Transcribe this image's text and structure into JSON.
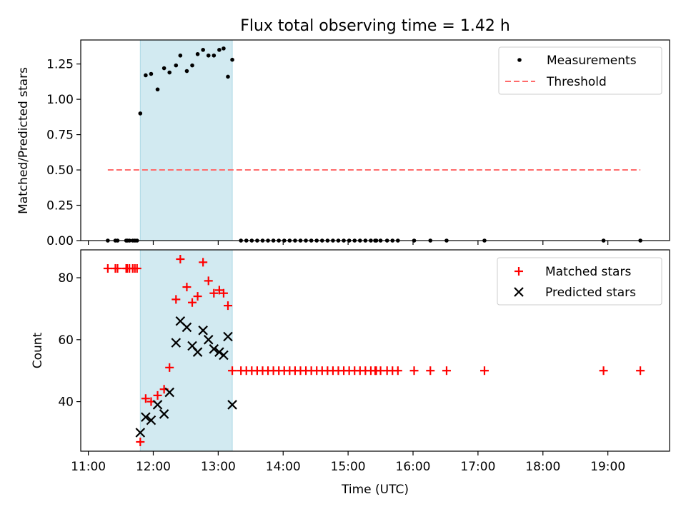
{
  "figure": {
    "title": "Flux total observing time = 1.42 h",
    "xlabel": "Time (UTC)"
  },
  "chart_data": [
    {
      "type": "scatter",
      "ylabel": "Matched/Predicted stars",
      "xlim": [
        "10:53",
        "19:57"
      ],
      "ylim": [
        0,
        1.42
      ],
      "yticks": [
        "0.00",
        "0.25",
        "0.50",
        "0.75",
        "1.00",
        "1.25"
      ],
      "grid": false,
      "legend": {
        "placement": "top-right",
        "entries": [
          "Measurements",
          "Threshold"
        ]
      },
      "shaded_span": {
        "x": [
          "11:48",
          "13:13"
        ],
        "color": "#add8e6"
      },
      "series": [
        {
          "name": "Measurements",
          "marker": "point",
          "color": "#000000",
          "x": [
            "11:18",
            "11:25",
            "11:27",
            "11:35",
            "11:36",
            "11:38",
            "11:41",
            "11:43",
            "11:45",
            "11:48",
            "11:53",
            "11:58",
            "12:04",
            "12:10",
            "12:15",
            "12:21",
            "12:25",
            "12:31",
            "12:36",
            "12:41",
            "12:46",
            "12:51",
            "12:56",
            "13:01",
            "13:05",
            "13:09",
            "13:13",
            "13:21",
            "13:26",
            "13:31",
            "13:36",
            "13:41",
            "13:46",
            "13:51",
            "13:56",
            "14:01",
            "14:06",
            "14:11",
            "14:16",
            "14:21",
            "14:26",
            "14:31",
            "14:36",
            "14:41",
            "14:46",
            "14:51",
            "14:56",
            "15:01",
            "15:06",
            "15:11",
            "15:16",
            "15:21",
            "15:25",
            "15:26",
            "15:30",
            "15:36",
            "15:41",
            "15:46",
            "16:01",
            "16:16",
            "16:31",
            "17:06",
            "18:56",
            "19:30"
          ],
          "y": [
            0,
            0,
            0,
            0,
            0,
            0,
            0,
            0,
            0,
            0.9,
            1.17,
            1.18,
            1.07,
            1.22,
            1.19,
            1.24,
            1.31,
            1.2,
            1.24,
            1.32,
            1.35,
            1.31,
            1.31,
            1.35,
            1.36,
            1.16,
            1.28,
            0,
            0,
            0,
            0,
            0,
            0,
            0,
            0,
            0,
            0,
            0,
            0,
            0,
            0,
            0,
            0,
            0,
            0,
            0,
            0,
            0,
            0,
            0,
            0,
            0,
            0,
            0,
            0,
            0,
            0,
            0,
            0,
            0,
            0,
            0,
            0,
            0
          ]
        },
        {
          "name": "Threshold",
          "style": "dashed",
          "color": "#ff6b6b",
          "x": [
            "11:18",
            "19:30"
          ],
          "y": [
            0.5,
            0.5
          ]
        }
      ]
    },
    {
      "type": "scatter",
      "ylabel": "Count",
      "xlim": [
        "10:53",
        "19:57"
      ],
      "ylim": [
        24,
        89
      ],
      "yticks": [
        "40",
        "60",
        "80"
      ],
      "xticks": [
        "11:00",
        "12:00",
        "13:00",
        "14:00",
        "15:00",
        "16:00",
        "17:00",
        "18:00",
        "19:00"
      ],
      "grid": false,
      "legend": {
        "placement": "top-right",
        "entries": [
          "Matched stars",
          "Predicted stars"
        ]
      },
      "shaded_span": {
        "x": [
          "11:48",
          "13:13"
        ],
        "color": "#add8e6"
      },
      "series": [
        {
          "name": "Matched stars",
          "marker": "plus",
          "color": "#ff0000",
          "x": [
            "11:18",
            "11:25",
            "11:27",
            "11:35",
            "11:36",
            "11:38",
            "11:41",
            "11:43",
            "11:45",
            "11:48",
            "11:53",
            "11:58",
            "12:04",
            "12:10",
            "12:15",
            "12:21",
            "12:25",
            "12:31",
            "12:36",
            "12:41",
            "12:46",
            "12:51",
            "12:56",
            "13:01",
            "13:05",
            "13:09",
            "13:13",
            "13:21",
            "13:26",
            "13:31",
            "13:36",
            "13:41",
            "13:46",
            "13:51",
            "13:56",
            "14:01",
            "14:06",
            "14:11",
            "14:16",
            "14:21",
            "14:26",
            "14:31",
            "14:36",
            "14:41",
            "14:46",
            "14:51",
            "14:56",
            "15:01",
            "15:06",
            "15:11",
            "15:16",
            "15:21",
            "15:25",
            "15:26",
            "15:30",
            "15:36",
            "15:41",
            "15:46",
            "16:01",
            "16:16",
            "16:31",
            "17:06",
            "18:56",
            "19:30"
          ],
          "y": [
            83,
            83,
            83,
            83,
            83,
            83,
            83,
            83,
            83,
            27,
            41,
            40,
            42,
            44,
            51,
            73,
            86,
            77,
            72,
            74,
            85,
            79,
            75,
            76,
            75,
            71,
            50,
            50,
            50,
            50,
            50,
            50,
            50,
            50,
            50,
            50,
            50,
            50,
            50,
            50,
            50,
            50,
            50,
            50,
            50,
            50,
            50,
            50,
            50,
            50,
            50,
            50,
            50,
            50,
            50,
            50,
            50,
            50,
            50,
            50,
            50,
            50,
            50,
            50
          ]
        },
        {
          "name": "Predicted stars",
          "marker": "x",
          "color": "#000000",
          "x": [
            "11:48",
            "11:53",
            "11:58",
            "12:04",
            "12:10",
            "12:15",
            "12:21",
            "12:25",
            "12:31",
            "12:36",
            "12:41",
            "12:46",
            "12:51",
            "12:56",
            "13:01",
            "13:05",
            "13:09",
            "13:13"
          ],
          "y": [
            30,
            35,
            34,
            39,
            36,
            43,
            59,
            66,
            64,
            58,
            56,
            63,
            60,
            57,
            56,
            55,
            61,
            39
          ]
        }
      ]
    }
  ]
}
